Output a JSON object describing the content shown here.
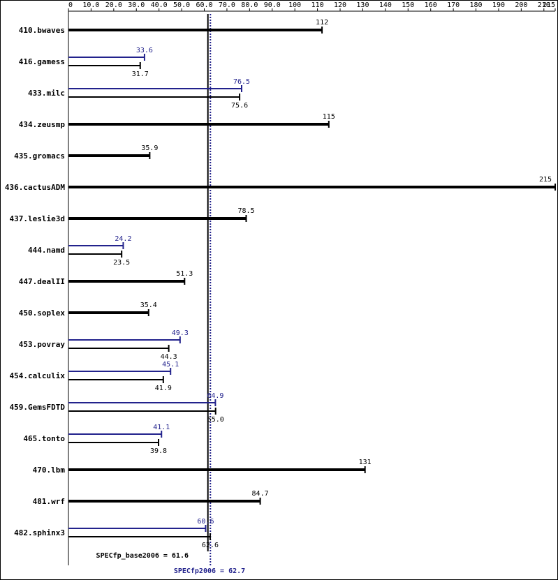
{
  "chart_data": {
    "type": "hbar",
    "categories": [
      "410.bwaves",
      "416.gamess",
      "433.milc",
      "434.zeusmp",
      "435.gromacs",
      "436.cactusADM",
      "437.leslie3d",
      "444.namd",
      "447.dealII",
      "450.soplex",
      "453.povray",
      "454.calculix",
      "459.GemsFDTD",
      "465.tonto",
      "470.lbm",
      "481.wrf",
      "482.sphinx3"
    ],
    "series": [
      {
        "name": "base",
        "color": "#000000",
        "values": [
          112,
          31.7,
          75.6,
          115,
          35.9,
          215,
          78.5,
          23.5,
          51.3,
          35.4,
          44.3,
          41.9,
          65.0,
          39.8,
          131,
          84.7,
          62.6
        ],
        "value_labels": [
          "112",
          "31.7",
          "75.6",
          "115",
          "35.9",
          "215",
          "78.5",
          "23.5",
          "51.3",
          "35.4",
          "44.3",
          "41.9",
          "65.0",
          "39.8",
          "131",
          "84.7",
          "62.6"
        ]
      },
      {
        "name": "peak",
        "color": "#22228c",
        "values": [
          null,
          33.6,
          76.5,
          null,
          null,
          null,
          null,
          24.2,
          null,
          null,
          49.3,
          45.1,
          64.9,
          41.1,
          null,
          null,
          60.6
        ]
      }
    ],
    "xlim": [
      0,
      215
    ],
    "xticks": [
      0,
      {
        "value": 10,
        "label": "10.0"
      },
      {
        "value": 20,
        "label": "20.0"
      },
      {
        "value": 30,
        "label": "30.0"
      },
      {
        "value": 40,
        "label": "40.0"
      },
      {
        "value": 50,
        "label": "50.0"
      },
      {
        "value": 60,
        "label": "60.0"
      },
      {
        "value": 70,
        "label": "70.0"
      },
      {
        "value": 80,
        "label": "80.0"
      },
      {
        "value": 90,
        "label": "90.0"
      },
      100,
      110,
      120,
      130,
      140,
      150,
      160,
      170,
      180,
      190,
      200,
      210,
      215
    ],
    "reference_lines": [
      {
        "label": "SPECfp_base2006 = 61.6",
        "value": 61.6,
        "color": "#000000",
        "style": "solid"
      },
      {
        "label": "SPECfp2006 = 62.7",
        "value": 62.7,
        "color": "#22228c",
        "style": "dotted"
      }
    ]
  }
}
